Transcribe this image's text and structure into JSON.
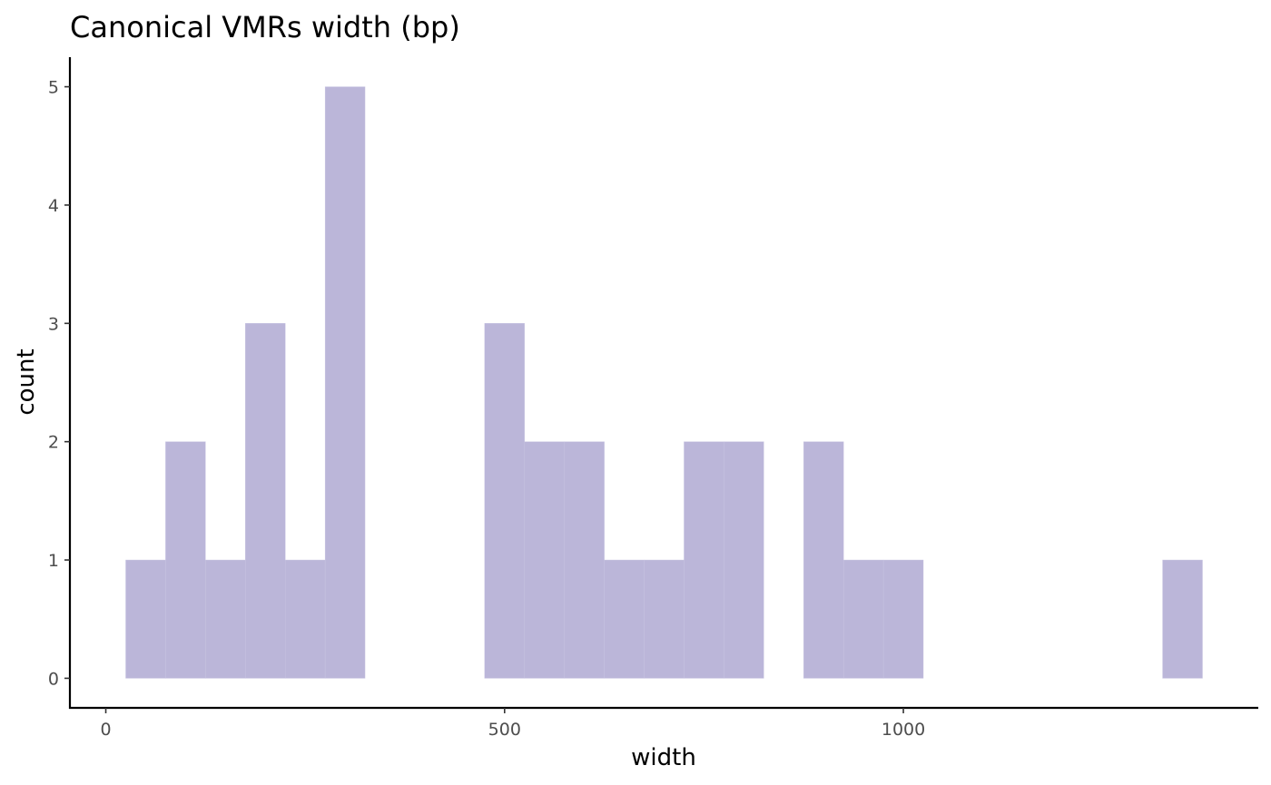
{
  "chart_data": {
    "type": "histogram",
    "title": "Canonical VMRs width (bp)",
    "xlabel": "width",
    "ylabel": "count",
    "binwidth": 50,
    "bins": [
      {
        "x0": 25,
        "x1": 75,
        "count": 1
      },
      {
        "x0": 75,
        "x1": 125,
        "count": 2
      },
      {
        "x0": 125,
        "x1": 175,
        "count": 1
      },
      {
        "x0": 175,
        "x1": 225,
        "count": 3
      },
      {
        "x0": 225,
        "x1": 275,
        "count": 1
      },
      {
        "x0": 275,
        "x1": 325,
        "count": 5
      },
      {
        "x0": 325,
        "x1": 375,
        "count": 0
      },
      {
        "x0": 375,
        "x1": 425,
        "count": 0
      },
      {
        "x0": 425,
        "x1": 475,
        "count": 0
      },
      {
        "x0": 475,
        "x1": 525,
        "count": 3
      },
      {
        "x0": 525,
        "x1": 575,
        "count": 2
      },
      {
        "x0": 575,
        "x1": 625,
        "count": 2
      },
      {
        "x0": 625,
        "x1": 675,
        "count": 1
      },
      {
        "x0": 675,
        "x1": 725,
        "count": 1
      },
      {
        "x0": 725,
        "x1": 775,
        "count": 2
      },
      {
        "x0": 775,
        "x1": 825,
        "count": 2
      },
      {
        "x0": 825,
        "x1": 875,
        "count": 0
      },
      {
        "x0": 875,
        "x1": 925,
        "count": 2
      },
      {
        "x0": 925,
        "x1": 975,
        "count": 1
      },
      {
        "x0": 975,
        "x1": 1025,
        "count": 1
      },
      {
        "x0": 1025,
        "x1": 1075,
        "count": 0
      },
      {
        "x0": 1075,
        "x1": 1125,
        "count": 0
      },
      {
        "x0": 1125,
        "x1": 1175,
        "count": 0
      },
      {
        "x0": 1175,
        "x1": 1225,
        "count": 0
      },
      {
        "x0": 1225,
        "x1": 1275,
        "count": 0
      },
      {
        "x0": 1275,
        "x1": 1325,
        "count": 0
      },
      {
        "x0": 1325,
        "x1": 1375,
        "count": 1
      }
    ],
    "xlim": [
      -45,
      1445
    ],
    "ylim": [
      -0.25,
      5.25
    ],
    "xticks": [
      0,
      500,
      1000
    ],
    "yticks": [
      0,
      1,
      2,
      3,
      4,
      5
    ],
    "bar_color": "#bbb6d9",
    "bar_edge_color": "#c9c5e2",
    "grid": false,
    "legend": "none"
  }
}
